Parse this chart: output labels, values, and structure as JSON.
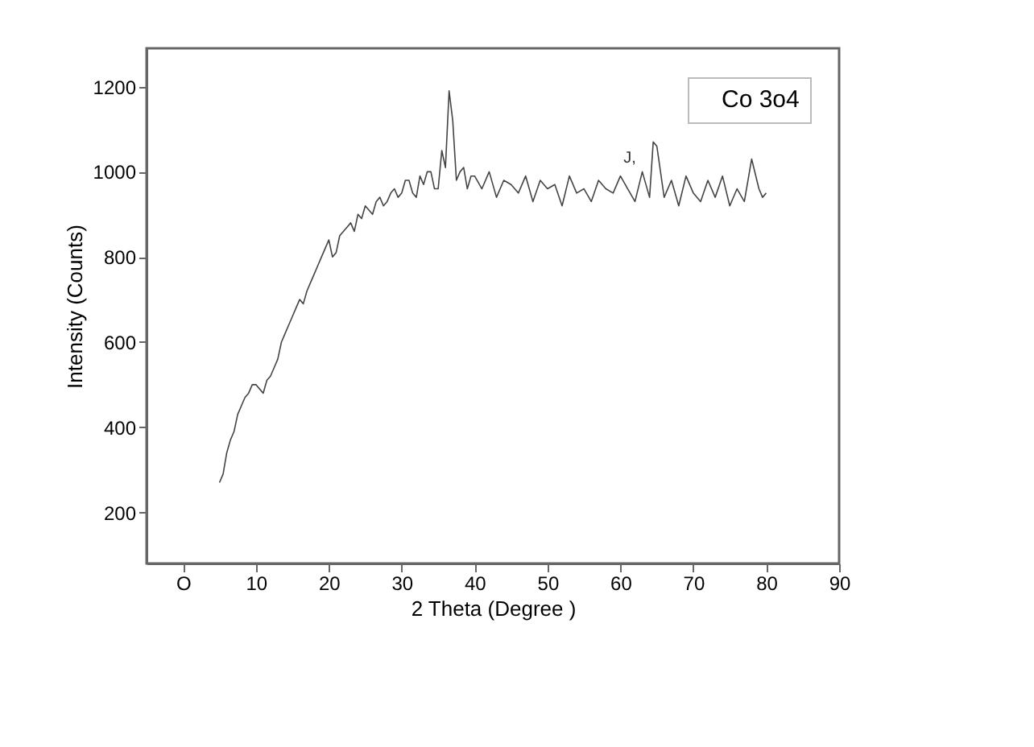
{
  "chart_data": {
    "type": "line",
    "xlabel": "2 Theta  (Degree )",
    "ylabel": "Intensity (Counts)",
    "x": [
      5,
      5.5,
      6,
      6.5,
      7,
      7.5,
      8,
      8.5,
      9,
      9.5,
      10,
      10.5,
      11,
      11.5,
      12,
      12.5,
      13,
      13.5,
      14,
      14.5,
      15,
      15.5,
      16,
      16.5,
      17,
      17.5,
      18,
      18.5,
      19,
      19.5,
      20,
      20.5,
      21,
      21.5,
      22,
      22.5,
      23,
      23.5,
      24,
      24.5,
      25,
      25.5,
      26,
      26.5,
      27,
      27.5,
      28,
      28.5,
      29,
      29.5,
      30,
      30.5,
      31,
      31.5,
      32,
      32.5,
      33,
      33.5,
      34,
      34.5,
      35,
      35.5,
      36,
      36.5,
      37,
      37.5,
      38,
      38.5,
      39,
      39.5,
      40,
      41,
      42,
      43,
      44,
      45,
      46,
      47,
      48,
      49,
      50,
      51,
      52,
      53,
      54,
      55,
      56,
      57,
      58,
      59,
      60,
      61,
      62,
      63,
      64,
      64.5,
      65,
      65.5,
      66,
      67,
      68,
      69,
      70,
      71,
      72,
      73,
      74,
      75,
      76,
      77,
      78,
      79,
      79.5,
      80
    ],
    "series": [
      {
        "name": "Co 3o4",
        "color": "#444444",
        "values": [
          270,
          290,
          340,
          370,
          390,
          430,
          450,
          470,
          480,
          500,
          500,
          490,
          480,
          510,
          520,
          540,
          560,
          600,
          620,
          640,
          660,
          680,
          700,
          690,
          720,
          740,
          760,
          780,
          800,
          820,
          840,
          800,
          810,
          850,
          860,
          870,
          880,
          860,
          900,
          890,
          920,
          910,
          900,
          930,
          940,
          920,
          930,
          950,
          960,
          940,
          950,
          980,
          980,
          950,
          940,
          990,
          970,
          1000,
          1000,
          960,
          960,
          1050,
          1010,
          1190,
          1120,
          980,
          1000,
          1010,
          960,
          990,
          990,
          960,
          1000,
          940,
          980,
          970,
          950,
          990,
          930,
          980,
          960,
          970,
          920,
          990,
          950,
          960,
          930,
          980,
          960,
          950,
          990,
          960,
          930,
          1000,
          940,
          1070,
          1060,
          1000,
          940,
          980,
          920,
          990,
          950,
          930,
          980,
          940,
          990,
          920,
          960,
          930,
          1030,
          960,
          940,
          950
        ]
      }
    ],
    "xlim": [
      -5,
      90
    ],
    "xticks": [
      {
        "value": 0,
        "label": "O"
      },
      10,
      20,
      30,
      40,
      50,
      60,
      70,
      80,
      90
    ],
    "ylim": [
      80,
      1290
    ],
    "yticks": [
      200,
      400,
      600,
      800,
      1000,
      1200
    ],
    "annotations": [
      "J,"
    ],
    "legend": "top right",
    "grid": false,
    "marker": "none",
    "line_style": "solid"
  }
}
